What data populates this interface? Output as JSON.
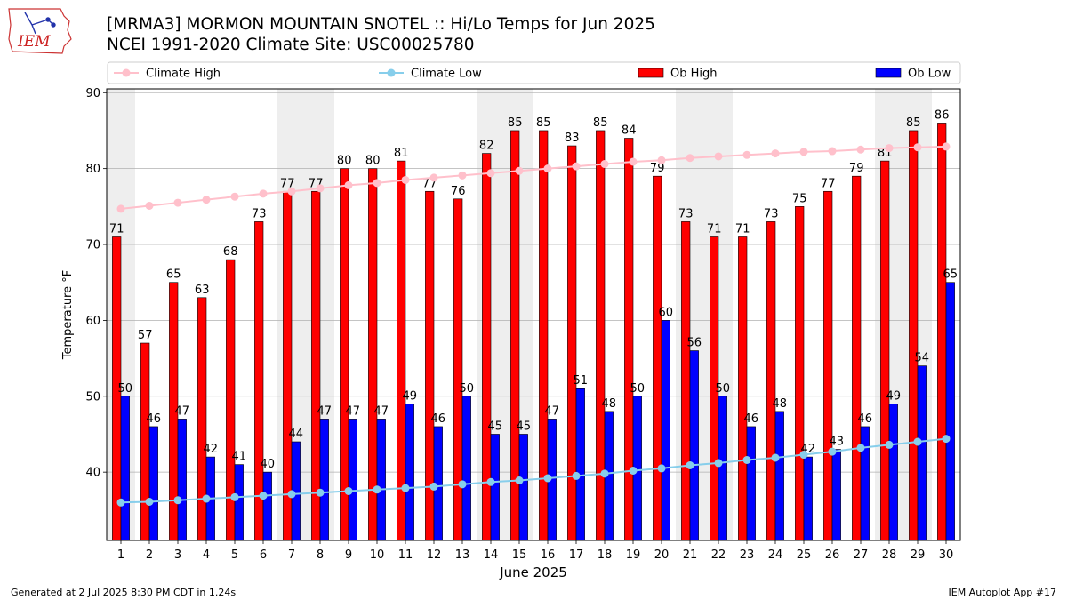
{
  "header": {
    "title_line1": "[MRMA3] MORMON MOUNTAIN SNOTEL :: Hi/Lo Temps for Jun 2025",
    "title_line2": "NCEI 1991-2020 Climate Site: USC00025780",
    "logo_text": "IEM"
  },
  "footer": {
    "generated": "Generated at 2 Jul 2025 8:30 PM CDT in 1.24s",
    "app": "IEM Autoplot App #17"
  },
  "colors": {
    "ob_high": "#ff0000",
    "ob_low": "#0000ff",
    "climate_high": "#ffc0cb",
    "climate_low": "#87ceeb",
    "weekend_band": "#eeeeee",
    "grid": "#b0b0b0"
  },
  "chart_data": {
    "type": "bar",
    "xlabel": "June 2025",
    "ylabel": "Temperature °F",
    "ylim": [
      31,
      90.5
    ],
    "yticks": [
      40,
      50,
      60,
      70,
      80,
      90
    ],
    "legend_position": "top",
    "grid": "horizontal",
    "weekend_bands": [
      [
        1,
        1
      ],
      [
        7,
        8
      ],
      [
        14,
        15
      ],
      [
        21,
        22
      ],
      [
        28,
        29
      ]
    ],
    "categories": [
      1,
      2,
      3,
      4,
      5,
      6,
      7,
      8,
      9,
      10,
      11,
      12,
      13,
      14,
      15,
      16,
      17,
      18,
      19,
      20,
      21,
      22,
      23,
      24,
      25,
      26,
      27,
      28,
      29,
      30
    ],
    "series": [
      {
        "name": "Ob High",
        "kind": "bar",
        "color": "#ff0000",
        "values": [
          71,
          57,
          65,
          63,
          68,
          73,
          77,
          77,
          80,
          80,
          81,
          77,
          76,
          82,
          85,
          85,
          83,
          85,
          84,
          79,
          73,
          71,
          71,
          73,
          75,
          77,
          79,
          81,
          85,
          86
        ]
      },
      {
        "name": "Ob Low",
        "kind": "bar",
        "color": "#0000ff",
        "values": [
          50,
          46,
          47,
          42,
          41,
          40,
          44,
          47,
          47,
          47,
          49,
          46,
          50,
          45,
          45,
          47,
          51,
          48,
          50,
          60,
          56,
          50,
          46,
          48,
          42,
          43,
          46,
          49,
          54,
          65
        ]
      },
      {
        "name": "Climate High",
        "kind": "line",
        "color": "#ffc0cb",
        "values": [
          74.7,
          75.1,
          75.5,
          75.9,
          76.3,
          76.7,
          77.0,
          77.4,
          77.8,
          78.1,
          78.5,
          78.8,
          79.1,
          79.4,
          79.7,
          80.0,
          80.3,
          80.6,
          80.9,
          81.1,
          81.4,
          81.6,
          81.8,
          82.0,
          82.2,
          82.3,
          82.5,
          82.7,
          82.8,
          82.9
        ]
      },
      {
        "name": "Climate Low",
        "kind": "line",
        "color": "#87ceeb",
        "values": [
          36.0,
          36.1,
          36.3,
          36.5,
          36.7,
          36.9,
          37.1,
          37.3,
          37.5,
          37.7,
          37.9,
          38.1,
          38.4,
          38.7,
          38.9,
          39.2,
          39.5,
          39.8,
          40.2,
          40.5,
          40.9,
          41.2,
          41.6,
          41.9,
          42.3,
          42.7,
          43.2,
          43.6,
          44.0,
          44.4
        ]
      }
    ],
    "legend": [
      "Climate High",
      "Climate Low",
      "Ob High",
      "Ob Low"
    ]
  }
}
